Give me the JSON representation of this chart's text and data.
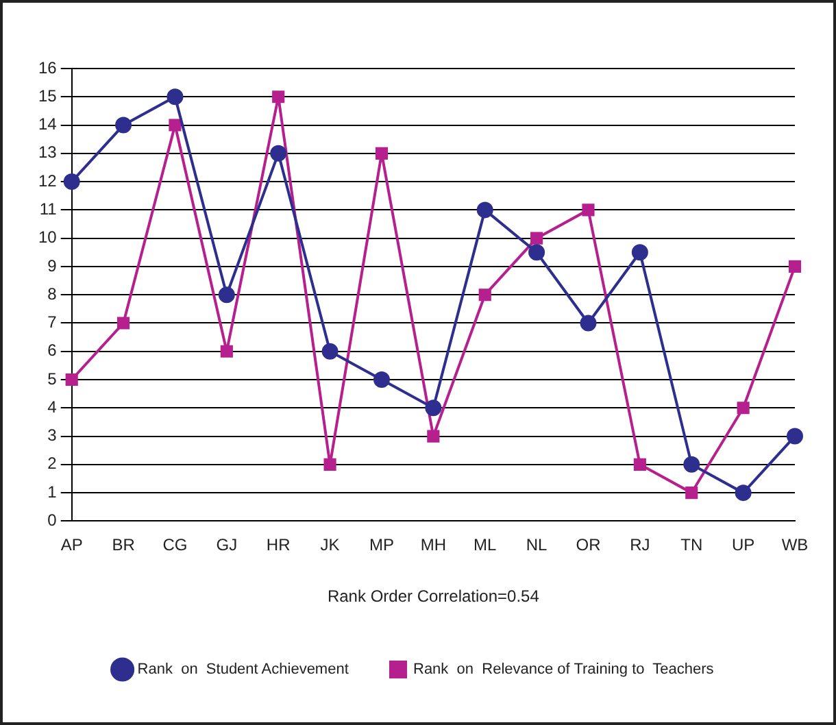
{
  "chart_data": {
    "type": "line",
    "xlabel": "Rank Order Correlation=0.54",
    "categories": [
      "AP",
      "BR",
      "CG",
      "GJ",
      "HR",
      "JK",
      "MP",
      "MH",
      "ML",
      "NL",
      "OR",
      "RJ",
      "TN",
      "UP",
      "WB"
    ],
    "series": [
      {
        "name": "Rank  on  Student Achievement",
        "color": "#2e2e8f",
        "marker": "circle",
        "values": [
          12,
          14,
          15,
          8,
          13,
          6,
          5,
          4,
          11,
          9.5,
          7,
          9.5,
          2,
          1,
          3
        ]
      },
      {
        "name": "Rank  on  Relevance of Training to  Teachers",
        "color": "#b5208e",
        "marker": "square",
        "values": [
          5,
          7,
          14,
          6,
          15,
          2,
          13,
          3,
          8,
          10,
          11,
          2,
          1,
          4,
          9
        ]
      }
    ],
    "ylim": [
      0,
      16
    ],
    "yticks": [
      0,
      1,
      2,
      3,
      4,
      5,
      6,
      7,
      8,
      9,
      10,
      11,
      12,
      13,
      14,
      15,
      16
    ],
    "grid": "y",
    "legend": "bottom",
    "line_style": "solid"
  }
}
